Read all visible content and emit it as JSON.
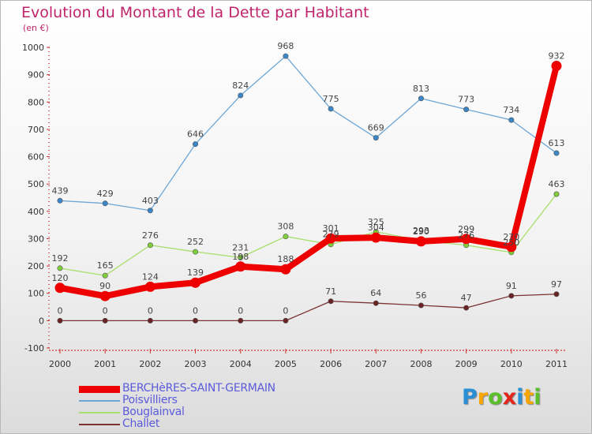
{
  "title": "Evolution du Montant de la Dette par Habitant",
  "subtitle": "(en €)",
  "logo": {
    "text": "Proxiti",
    "letters": [
      {
        "ch": "P",
        "color": "#2b8fd6"
      },
      {
        "ch": "r",
        "color": "#f7a500"
      },
      {
        "ch": "o",
        "color": "#5bbf2a"
      },
      {
        "ch": "x",
        "color": "#e2261c"
      },
      {
        "ch": "i",
        "color": "#2b8fd6"
      },
      {
        "ch": "t",
        "color": "#f7a500"
      },
      {
        "ch": "i",
        "color": "#5bbf2a"
      }
    ]
  },
  "chart_data": {
    "type": "line",
    "x": [
      "2000",
      "2001",
      "2002",
      "2003",
      "2004",
      "2005",
      "2006",
      "2007",
      "2008",
      "2009",
      "2010",
      "2011"
    ],
    "ylim": [
      -100,
      1000
    ],
    "yticks": [
      -100,
      0,
      100,
      200,
      300,
      400,
      500,
      600,
      700,
      800,
      900,
      1000
    ],
    "grid": false,
    "legend_position": "bottom-left",
    "series": [
      {
        "name": "BERCHèRES-SAINT-GERMAIN",
        "color": "#ee0000",
        "point_color": "#ee0000",
        "highlight": true,
        "values": [
          120,
          90,
          124,
          139,
          198,
          188,
          301,
          304,
          290,
          299,
          270,
          932
        ],
        "labels": [
          "120",
          "90",
          "124",
          "139",
          "198",
          "188",
          "301",
          "304",
          "290",
          "299",
          "270",
          "932"
        ]
      },
      {
        "name": "Poisvilliers",
        "color": "#6da7d6",
        "point_color": "#3a86c8",
        "highlight": false,
        "values": [
          439,
          429,
          403,
          646,
          824,
          968,
          775,
          669,
          813,
          773,
          734,
          613
        ],
        "labels": [
          "439",
          "429",
          "403",
          "646",
          "824",
          "968",
          "775",
          "669",
          "813",
          "773",
          "734",
          "613"
        ]
      },
      {
        "name": "Bouglainval",
        "color": "#a6df6c",
        "point_color": "#7fcf3a",
        "highlight": false,
        "values": [
          192,
          165,
          276,
          252,
          231,
          308,
          279,
          325,
          293,
          276,
          250,
          463
        ],
        "labels": [
          "192",
          "165",
          "276",
          "252",
          "231",
          "308",
          "279",
          "325",
          "293",
          "276",
          "250",
          "463"
        ]
      },
      {
        "name": "Challet",
        "color": "#7a3232",
        "point_color": "#6b2222",
        "highlight": false,
        "values": [
          0,
          0,
          0,
          0,
          0,
          0,
          71,
          64,
          56,
          47,
          91,
          97
        ],
        "labels": [
          "0",
          "0",
          "0",
          "0",
          "0",
          "0",
          "71",
          "64",
          "56",
          "47",
          "91",
          "97"
        ]
      }
    ]
  }
}
